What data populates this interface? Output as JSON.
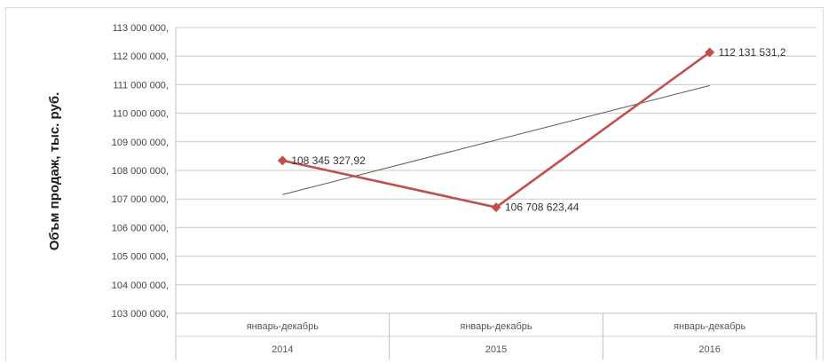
{
  "chart_data": {
    "type": "line",
    "title": "",
    "ylabel": "Объм продаж, тыс. руб.",
    "xlabel": "",
    "ylim": [
      103000000,
      113000000
    ],
    "y_ticks": [
      103000000,
      104000000,
      105000000,
      106000000,
      107000000,
      108000000,
      109000000,
      110000000,
      111000000,
      112000000,
      113000000
    ],
    "y_tick_labels": [
      "103 000 000,",
      "104 000 000,",
      "105 000 000,",
      "106 000 000,",
      "107 000 000,",
      "108 000 000,",
      "109 000 000,",
      "110 000 000,",
      "111 000 000,",
      "112 000 000,",
      "113 000 000,"
    ],
    "categories": [
      {
        "line1": "январь-декабрь",
        "line2": "2014"
      },
      {
        "line1": "январь-декабрь",
        "line2": "2015"
      },
      {
        "line1": "январь-декабрь",
        "line2": "2016"
      }
    ],
    "series": [
      {
        "values": [
          108345327.92,
          106708623.44,
          112131531.2
        ],
        "data_labels": [
          "108 345 327,92",
          "106 708 623,44",
          "112 131 531,2"
        ],
        "color": "#c0504d",
        "marker": "diamond"
      }
    ],
    "trendline": {
      "type": "linear",
      "values": [
        107153294.56,
        109061827.52,
        110970360.48
      ],
      "color": "#595959"
    },
    "grid": true,
    "legend": "none"
  }
}
